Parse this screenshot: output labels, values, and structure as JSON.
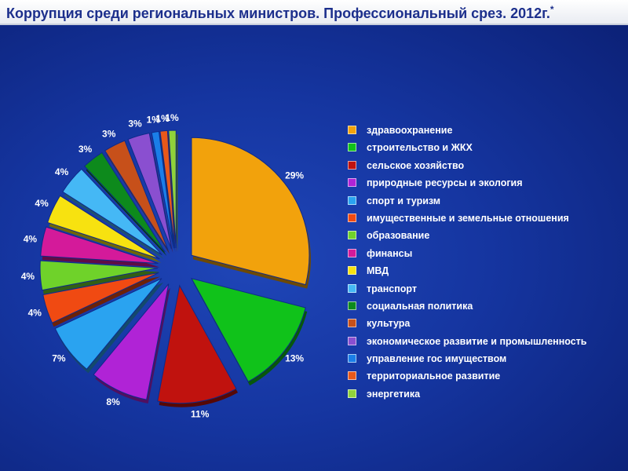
{
  "chart_data": {
    "type": "pie",
    "title": "Коррупция среди региональных министров. Профессиональный срез. 2012г.",
    "title_mark": "*",
    "slices": [
      {
        "label": "здравоохранение",
        "value": 29,
        "value_label": "29%",
        "color": "#f2a20c"
      },
      {
        "label": "строительство и ЖКХ",
        "value": 13,
        "value_label": "13%",
        "color": "#10c21a"
      },
      {
        "label": "сельское хозяйство",
        "value": 11,
        "value_label": "11%",
        "color": "#c0120e"
      },
      {
        "label": "природные ресурсы и экология",
        "value": 8,
        "value_label": "8%",
        "color": "#b023d6"
      },
      {
        "label": "спорт и туризм",
        "value": 7,
        "value_label": "7%",
        "color": "#2aa3f0"
      },
      {
        "label": "имущественные и земельные отношения",
        "value": 4,
        "value_label": "4%",
        "color": "#f04a12"
      },
      {
        "label": "образование",
        "value": 4,
        "value_label": "4%",
        "color": "#6fd22a"
      },
      {
        "label": "финансы",
        "value": 4,
        "value_label": "4%",
        "color": "#d41a9a"
      },
      {
        "label": "МВД",
        "value": 4,
        "value_label": "4%",
        "color": "#f7e210"
      },
      {
        "label": "транспорт",
        "value": 4,
        "value_label": "4%",
        "color": "#45b8f5"
      },
      {
        "label": "социальная политика",
        "value": 3,
        "value_label": "3%",
        "color": "#0d8a1c"
      },
      {
        "label": "культура",
        "value": 3,
        "value_label": "3%",
        "color": "#c7501a"
      },
      {
        "label": "экономическое развитие и промышленность",
        "value": 3,
        "value_label": "3%",
        "color": "#8a4fd0"
      },
      {
        "label": "управление гос имуществом",
        "value": 1,
        "value_label": "1%",
        "color": "#1a7ee8"
      },
      {
        "label": "территориальное развитие",
        "value": 1,
        "value_label": "1%",
        "color": "#e8581a"
      },
      {
        "label": "энергетика",
        "value": 1,
        "value_label": "1%",
        "color": "#8fd23a"
      }
    ],
    "legend_position": "right",
    "labels": "outside"
  }
}
